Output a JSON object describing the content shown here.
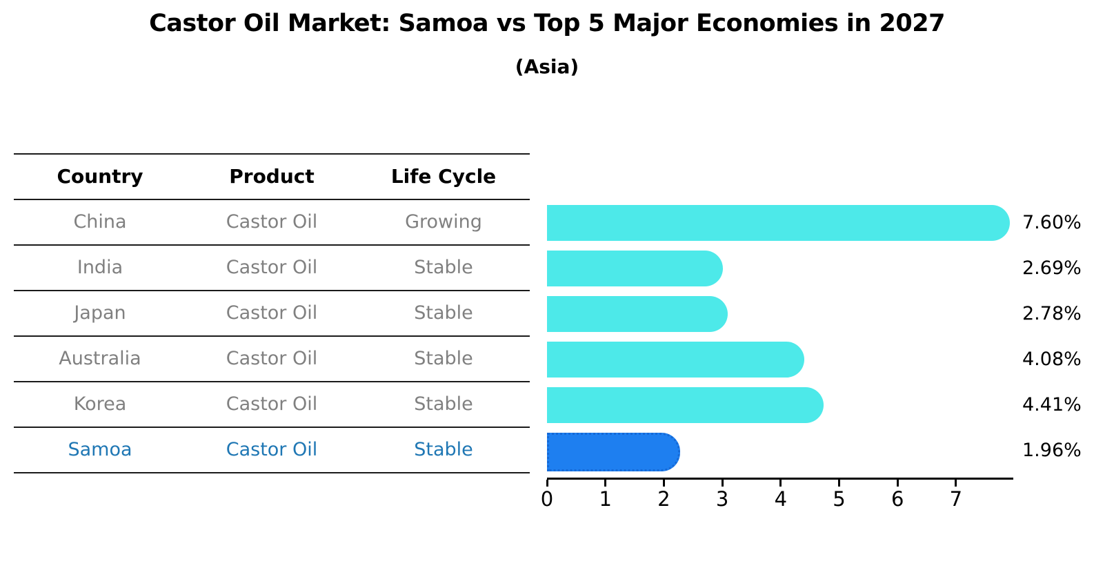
{
  "title": "Castor Oil Market: Samoa vs Top 5 Major Economies in 2027",
  "subtitle": "(Asia)",
  "table": {
    "headers": [
      "Country",
      "Product",
      "Life Cycle"
    ],
    "rows": [
      {
        "country": "China",
        "product": "Castor Oil",
        "life_cycle": "Growing",
        "highlight": false
      },
      {
        "country": "India",
        "product": "Castor Oil",
        "life_cycle": "Stable",
        "highlight": false
      },
      {
        "country": "Japan",
        "product": "Castor Oil",
        "life_cycle": "Stable",
        "highlight": false
      },
      {
        "country": "Australia",
        "product": "Castor Oil",
        "life_cycle": "Stable",
        "highlight": false
      },
      {
        "country": "Korea",
        "product": "Castor Oil",
        "life_cycle": "Stable",
        "highlight": false
      },
      {
        "country": "Samoa",
        "product": "Castor Oil",
        "life_cycle": "Stable",
        "highlight": true
      }
    ]
  },
  "chart_data": {
    "type": "bar",
    "orientation": "horizontal",
    "title": "Castor Oil Market: Samoa vs Top 5 Major Economies in 2027",
    "subtitle": "(Asia)",
    "categories": [
      "China",
      "India",
      "Japan",
      "Australia",
      "Korea",
      "Samoa"
    ],
    "values": [
      7.6,
      2.69,
      2.78,
      4.08,
      4.41,
      1.96
    ],
    "value_labels": [
      "7.60%",
      "2.69%",
      "2.78%",
      "4.08%",
      "4.41%",
      "1.96%"
    ],
    "highlight_index": 5,
    "xlabel": "",
    "ylabel": "",
    "xlim": [
      0,
      8
    ],
    "x_ticks": [
      0,
      1,
      2,
      3,
      4,
      5,
      6,
      7
    ],
    "grid": false,
    "legend": "none",
    "colors": {
      "bar": "#4de9e9",
      "highlight_bar": "#1e7ff0",
      "highlight_border": "#1569d6",
      "highlight_text": "#1f77b4",
      "table_text": "#808080",
      "header_text": "#000000",
      "value_label_text": "#000000",
      "axis": "#000000",
      "background": "#ffffff"
    }
  }
}
